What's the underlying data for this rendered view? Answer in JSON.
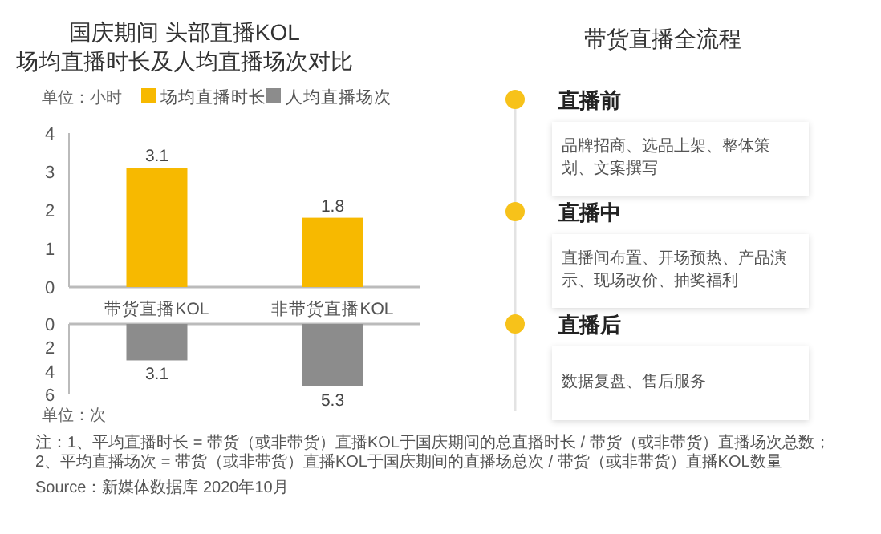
{
  "chart_data": [
    {
      "type": "bar",
      "title": "国庆期间 头部直播KOL",
      "subtitle": "场均直播时长及人均直播场次对比",
      "ylabel": "单位：小时",
      "categories": [
        "带货直播KOL",
        "非带货直播KOL"
      ],
      "series": [
        {
          "name": "场均直播时长",
          "color": "#f7b900",
          "values": [
            3.1,
            1.8
          ]
        }
      ],
      "ylim": [
        0,
        4
      ],
      "yticks": [
        0,
        1,
        2,
        3,
        4
      ],
      "data_labels": true,
      "legend": "top left"
    },
    {
      "type": "bar",
      "ylabel": "单位：次",
      "categories": [
        null,
        null
      ],
      "series": [
        {
          "name": "人均直播场次",
          "color": "#8c8c8c",
          "values": [
            3.1,
            5.3
          ]
        }
      ],
      "ylim": [
        6,
        0
      ],
      "yticks": [
        0,
        2,
        4,
        6
      ],
      "data_labels": true,
      "tick_labels": "y",
      "legend": "top right",
      "annotations": [
        "注：1、平均直播时长 = 带货（或非带货）直播KOL于国庆期间的总直播时长 / 带货（或非带货）直播场次总数；",
        "2、平均直播场次 = 带货（或非带货）直播KOL于国庆期间的直播场总次 / 带货（或非带货）直播KOL数量",
        "Source：新媒体数据库 2020年10月"
      ]
    },
    {
      "type": "other",
      "title": "带货直播全流程",
      "categories": [
        "直播前",
        "直播中",
        "直播后"
      ],
      "annotations": [
        "品牌招商、选品上架、整体策划、文案撰写",
        "直播间布置、开场预热、产品演示、现场改价、抽奖福利",
        "数据复盘、售后服务"
      ]
    }
  ]
}
